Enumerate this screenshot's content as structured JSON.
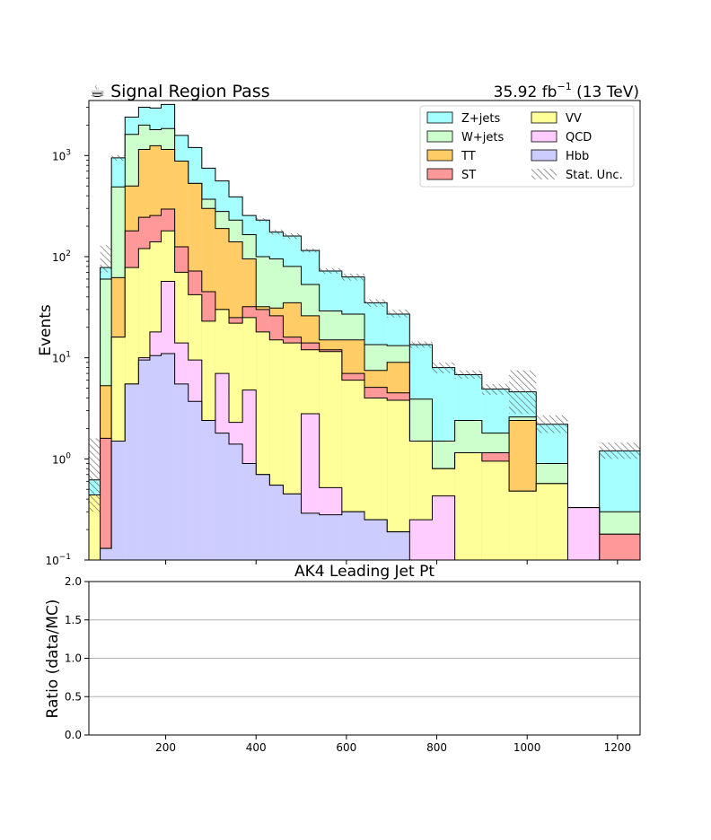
{
  "header": {
    "title": "☕ Signal Region Pass",
    "lumi": "35.92 fb",
    "lumi_exp": "−1",
    "energy": " (13 TeV)"
  },
  "chart_data": [
    {
      "type": "area",
      "subtype": "stacked-step-histogram",
      "title": "Signal Region Pass",
      "ylabel": "Events",
      "yscale": "log",
      "ylim": [
        0.1,
        3500
      ],
      "xlim": [
        30,
        1250
      ],
      "ytick_labels": [
        {
          "v": 0.1,
          "label": "10",
          "exp": "−1"
        },
        {
          "v": 1,
          "label": "10",
          "exp": "0"
        },
        {
          "v": 10,
          "label": "10",
          "exp": "1"
        },
        {
          "v": 100,
          "label": "10",
          "exp": "2"
        },
        {
          "v": 1000,
          "label": "10",
          "exp": "3"
        }
      ],
      "legend": {
        "placement": "top-right",
        "entries": [
          {
            "name": "Z+jets",
            "color": "#a6ffff"
          },
          {
            "name": "VV",
            "color": "#ffff99"
          },
          {
            "name": "W+jets",
            "color": "#ccffcc"
          },
          {
            "name": "QCD",
            "color": "#ffccff"
          },
          {
            "name": "TT",
            "color": "#ffcc66"
          },
          {
            "name": "Hbb",
            "color": "#ccccff"
          },
          {
            "name": "ST",
            "color": "#ff9999"
          },
          {
            "name": "Stat. Unc.",
            "color": "hatch"
          }
        ]
      },
      "bin_edges": [
        30,
        55,
        80,
        110,
        140,
        165,
        190,
        220,
        250,
        280,
        310,
        340,
        370,
        400,
        430,
        460,
        500,
        540,
        590,
        640,
        690,
        740,
        790,
        840,
        900,
        960,
        1020,
        1090,
        1160,
        1250
      ],
      "series": [
        {
          "name": "Hbb",
          "color": "#ccccff",
          "values": [
            0.1,
            0.13,
            1.5,
            5.5,
            9.5,
            10.5,
            11,
            5.5,
            3.7,
            2.4,
            1.8,
            1.4,
            0.9,
            0.7,
            0.55,
            0.45,
            0.29,
            0.28,
            0.3,
            0.25,
            0.19,
            0.1,
            0.1,
            0.1,
            0.1,
            0.1,
            0.1,
            0.1,
            0.1
          ]
        },
        {
          "name": "QCD",
          "color": "#ffccff",
          "values": [
            0.1,
            0.13,
            1.5,
            5.5,
            10,
            18,
            57,
            14,
            9.5,
            2.4,
            7,
            2.3,
            4.8,
            0.7,
            0.55,
            0.45,
            2.8,
            0.52,
            0.3,
            0.25,
            0.19,
            0.25,
            0.43,
            0.1,
            0.1,
            0.1,
            0.1,
            0.33,
            0.1
          ]
        },
        {
          "name": "VV",
          "color": "#ffff99",
          "values": [
            0.44,
            0.13,
            16,
            78,
            120,
            140,
            180,
            70,
            42,
            23,
            30,
            22,
            25,
            18,
            15,
            14,
            12,
            11.5,
            6,
            4,
            3.8,
            1.5,
            0.8,
            1.15,
            0.95,
            0.48,
            0.57,
            0.33,
            0.1
          ]
        },
        {
          "name": "ST",
          "color": "#ff9999",
          "values": [
            0.44,
            1.6,
            16,
            180,
            245,
            255,
            295,
            125,
            72,
            45,
            30,
            25,
            32,
            30,
            26,
            16,
            14,
            12,
            7,
            5.1,
            4.5,
            1.5,
            0.8,
            1.15,
            1.15,
            0.48,
            0.57,
            0.33,
            0.18
          ]
        },
        {
          "name": "TT",
          "color": "#ffcc66",
          "values": [
            0.44,
            5.3,
            62,
            500,
            1150,
            1250,
            1150,
            880,
            530,
            300,
            190,
            140,
            95,
            32,
            31,
            35,
            26,
            15,
            15,
            7.5,
            9,
            1.5,
            0.8,
            1.15,
            1.15,
            2.4,
            0.57,
            0.33,
            0.18
          ]
        },
        {
          "name": "W+jets",
          "color": "#ccffcc",
          "values": [
            0.44,
            60,
            490,
            1620,
            2000,
            1800,
            1850,
            880,
            530,
            370,
            280,
            230,
            165,
            100,
            95,
            80,
            53,
            29,
            27,
            13.5,
            13.2,
            3.9,
            1.5,
            2.4,
            1.8,
            2.6,
            0.9,
            0.33,
            0.3
          ]
        },
        {
          "name": "Z+jets",
          "color": "#a6ffff",
          "values": [
            0.62,
            78,
            950,
            2400,
            3000,
            2950,
            3200,
            1580,
            1200,
            750,
            560,
            390,
            255,
            230,
            175,
            160,
            115,
            72,
            63,
            35,
            27,
            13.5,
            8,
            6.8,
            4.9,
            4.6,
            2.2,
            0.33,
            1.2
          ]
        }
      ],
      "stat_unc_bands": [
        [
          0.3,
          1.6
        ],
        [
          70,
          130
        ],
        [
          890,
          1010
        ],
        [
          0,
          0
        ],
        [
          0,
          0
        ],
        [
          0,
          0
        ],
        [
          0,
          0
        ],
        [
          0,
          0
        ],
        [
          0,
          0
        ],
        [
          0,
          0
        ],
        [
          0,
          0
        ],
        [
          0,
          0
        ],
        [
          0,
          0
        ],
        [
          220,
          240
        ],
        [
          165,
          185
        ],
        [
          150,
          170
        ],
        [
          110,
          120
        ],
        [
          68,
          77
        ],
        [
          58,
          68
        ],
        [
          32,
          38
        ],
        [
          25,
          30
        ],
        [
          12.5,
          14.5
        ],
        [
          7,
          9
        ],
        [
          6.2,
          7.5
        ],
        [
          4.3,
          5.5
        ],
        [
          2.8,
          7.5
        ],
        [
          1.8,
          2.7
        ],
        [
          0,
          0
        ],
        [
          1.0,
          1.45
        ]
      ]
    },
    {
      "type": "line",
      "title": "AK4 Leading Jet Pt",
      "ylabel": "Ratio (data/MC)",
      "ylim": [
        0,
        2.0
      ],
      "xlim": [
        30,
        1250
      ],
      "grid": true,
      "ytick_labels": [
        "0.0",
        "0.5",
        "1.0",
        "1.5",
        "2.0"
      ],
      "ygrid_values": [
        0.5,
        1.0,
        1.5
      ],
      "x_tick_labels": [
        "200",
        "400",
        "600",
        "800",
        "1000",
        "1200"
      ]
    }
  ]
}
